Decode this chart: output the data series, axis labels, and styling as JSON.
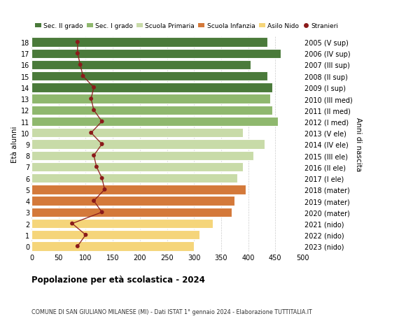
{
  "ages": [
    0,
    1,
    2,
    3,
    4,
    5,
    6,
    7,
    8,
    9,
    10,
    11,
    12,
    13,
    14,
    15,
    16,
    17,
    18
  ],
  "years": [
    "2023 (nido)",
    "2022 (nido)",
    "2021 (nido)",
    "2020 (mater)",
    "2019 (mater)",
    "2018 (mater)",
    "2017 (I ele)",
    "2016 (II ele)",
    "2015 (III ele)",
    "2014 (IV ele)",
    "2013 (V ele)",
    "2012 (I med)",
    "2011 (II med)",
    "2010 (III med)",
    "2009 (I sup)",
    "2008 (II sup)",
    "2007 (III sup)",
    "2006 (IV sup)",
    "2005 (V sup)"
  ],
  "bar_values": [
    300,
    310,
    335,
    370,
    375,
    395,
    380,
    390,
    410,
    430,
    390,
    455,
    445,
    440,
    445,
    435,
    405,
    460,
    435
  ],
  "bar_colors": [
    "#f5d57a",
    "#f5d57a",
    "#f5d57a",
    "#d4793a",
    "#d4793a",
    "#d4793a",
    "#c8dba8",
    "#c8dba8",
    "#c8dba8",
    "#c8dba8",
    "#c8dba8",
    "#8fb86e",
    "#8fb86e",
    "#8fb86e",
    "#4a7a3a",
    "#4a7a3a",
    "#4a7a3a",
    "#4a7a3a",
    "#4a7a3a"
  ],
  "stranieri_values": [
    85,
    100,
    75,
    130,
    115,
    135,
    130,
    120,
    115,
    130,
    110,
    130,
    115,
    110,
    115,
    95,
    90,
    85,
    85
  ],
  "legend_labels": [
    "Sec. II grado",
    "Sec. I grado",
    "Scuola Primaria",
    "Scuola Infanzia",
    "Asilo Nido",
    "Stranieri"
  ],
  "legend_colors": [
    "#4a7a3a",
    "#8fb86e",
    "#c8dba8",
    "#d4793a",
    "#f5d57a",
    "#8b1a1a"
  ],
  "title": "Popolazione per età scolastica - 2024",
  "subtitle": "COMUNE DI SAN GIULIANO MILANESE (MI) - Dati ISTAT 1° gennaio 2024 - Elaborazione TUTTITALIA.IT",
  "ylabel_left": "Età alunni",
  "ylabel_right": "Anni di nascita",
  "xlim": [
    0,
    500
  ],
  "xticks": [
    0,
    50,
    100,
    150,
    200,
    250,
    300,
    350,
    400,
    450,
    500
  ],
  "background_color": "#ffffff",
  "bar_height": 0.82,
  "stranieri_color": "#8b1a1a",
  "grid_color": "#cccccc"
}
